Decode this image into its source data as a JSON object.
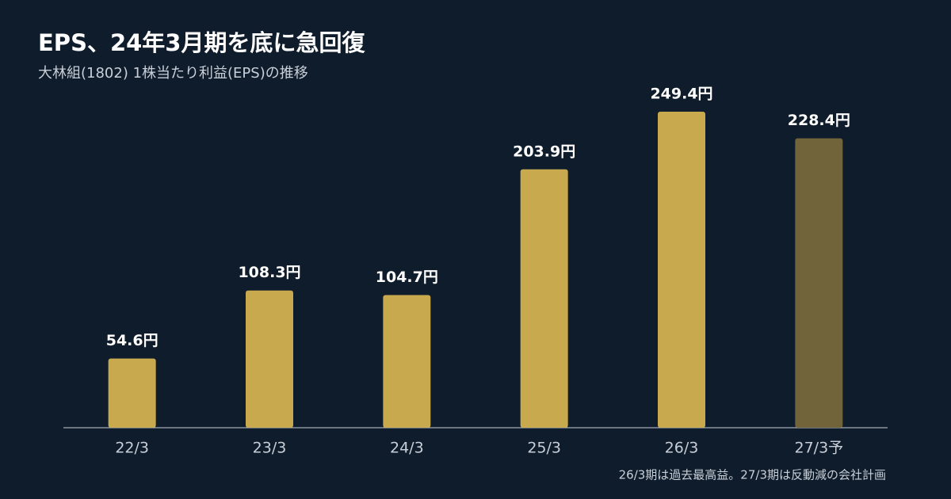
{
  "chart_data": {
    "type": "bar",
    "title": "EPS、24年3月期を底に急回復",
    "subtitle": "大林組(1802) 1株当たり利益(EPS)の推移",
    "categories": [
      "22/3",
      "23/3",
      "24/3",
      "25/3",
      "26/3",
      "27/3予"
    ],
    "values": [
      54.6,
      108.3,
      104.7,
      203.9,
      249.4,
      228.4
    ],
    "value_labels": [
      "54.6円",
      "108.3円",
      "104.7円",
      "203.9円",
      "249.4円",
      "228.4円"
    ],
    "colors": [
      "#c8a94e",
      "#c8a94e",
      "#c8a94e",
      "#c8a94e",
      "#c8a94e",
      "#72643a"
    ],
    "note": "26/3期は過去最高益。27/3期は反動減の会社計画"
  }
}
